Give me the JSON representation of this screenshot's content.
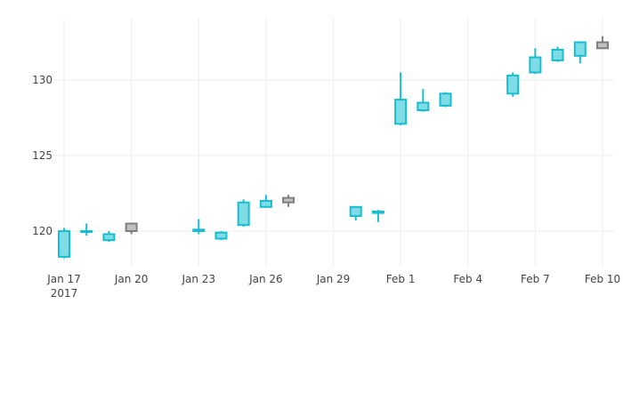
{
  "chart_data": {
    "type": "candlestick",
    "title": "",
    "xlabel": "",
    "ylabel": "",
    "grid": true,
    "legend": "none",
    "xlim": [
      "2017-01-17",
      "2017-02-10"
    ],
    "ylim": [
      117.5,
      133.5
    ],
    "x_tick_dates": [
      "2017-01-17",
      "2017-01-20",
      "2017-01-23",
      "2017-01-26",
      "2017-01-29",
      "2017-02-01",
      "2017-02-04",
      "2017-02-07",
      "2017-02-10"
    ],
    "x_tick_labels": [
      "Jan 17",
      "Jan 20",
      "Jan 23",
      "Jan 26",
      "Jan 29",
      "Feb 1",
      "Feb 4",
      "Feb 7",
      "Feb 10"
    ],
    "x_tick_sublabel": "2017",
    "y_ticks": [
      120,
      125,
      130
    ],
    "y_tick_labels": [
      "120",
      "125",
      "130"
    ],
    "colors": {
      "increasing_line": "#17becf",
      "increasing_fill": "#7fdbe6",
      "decreasing_line": "#7f7f7f",
      "decreasing_fill": "#bfbfbf",
      "grid": "#eeeeee",
      "text": "#444444"
    },
    "candles": [
      {
        "date": "2017-01-17",
        "open": 118.3,
        "high": 120.2,
        "low": 118.2,
        "close": 120.0
      },
      {
        "date": "2017-01-18",
        "open": 120.0,
        "high": 120.5,
        "low": 119.7,
        "close": 120.0
      },
      {
        "date": "2017-01-19",
        "open": 119.4,
        "high": 120.0,
        "low": 119.3,
        "close": 119.8
      },
      {
        "date": "2017-01-20",
        "open": 120.5,
        "high": 120.5,
        "low": 119.8,
        "close": 120.0
      },
      {
        "date": "2017-01-23",
        "open": 120.0,
        "high": 120.8,
        "low": 119.8,
        "close": 120.1
      },
      {
        "date": "2017-01-24",
        "open": 119.5,
        "high": 120.0,
        "low": 119.4,
        "close": 119.9
      },
      {
        "date": "2017-01-25",
        "open": 120.4,
        "high": 122.1,
        "low": 120.3,
        "close": 121.9
      },
      {
        "date": "2017-01-26",
        "open": 121.6,
        "high": 122.4,
        "low": 121.6,
        "close": 122.0
      },
      {
        "date": "2017-01-27",
        "open": 122.2,
        "high": 122.4,
        "low": 121.6,
        "close": 121.9
      },
      {
        "date": "2017-01-30",
        "open": 121.0,
        "high": 121.6,
        "low": 120.7,
        "close": 121.6
      },
      {
        "date": "2017-01-31",
        "open": 121.2,
        "high": 121.4,
        "low": 120.6,
        "close": 121.3
      },
      {
        "date": "2017-02-01",
        "open": 127.1,
        "high": 130.5,
        "low": 127.0,
        "close": 128.7
      },
      {
        "date": "2017-02-02",
        "open": 128.0,
        "high": 129.4,
        "low": 127.9,
        "close": 128.5
      },
      {
        "date": "2017-02-03",
        "open": 128.3,
        "high": 129.2,
        "low": 128.2,
        "close": 129.1
      },
      {
        "date": "2017-02-06",
        "open": 129.1,
        "high": 130.5,
        "low": 128.9,
        "close": 130.3
      },
      {
        "date": "2017-02-07",
        "open": 130.5,
        "high": 132.1,
        "low": 130.4,
        "close": 131.5
      },
      {
        "date": "2017-02-08",
        "open": 131.3,
        "high": 132.2,
        "low": 131.2,
        "close": 132.0
      },
      {
        "date": "2017-02-09",
        "open": 131.6,
        "high": 132.5,
        "low": 131.1,
        "close": 132.5
      },
      {
        "date": "2017-02-10",
        "open": 132.5,
        "high": 132.9,
        "low": 132.1,
        "close": 132.1
      }
    ]
  }
}
